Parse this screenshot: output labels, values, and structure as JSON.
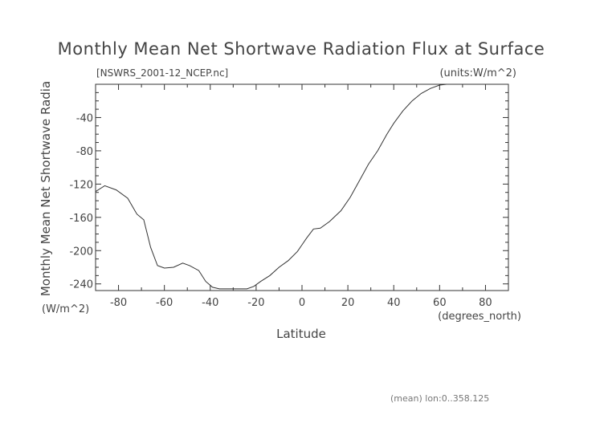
{
  "chart_data": {
    "type": "line",
    "title": "Monthly Mean Net Shortwave Radiation Flux at Surface",
    "subtitle": "[NSWRS_2001-12_NCEP.nc]",
    "units_label": "(units:W/m^2)",
    "xlabel": "Latitude",
    "xunits": "(degrees_north)",
    "ylabel": "Monthly Mean Net Shortwave Radia",
    "yunits": "(W/m^2)",
    "footnote": "(mean) lon:0..358.125",
    "xlim": [
      -90,
      90
    ],
    "ylim": [
      -248,
      0
    ],
    "x_ticks": [
      -80,
      -60,
      -40,
      -20,
      0,
      20,
      40,
      60,
      80
    ],
    "x_tick_labels": [
      "-80",
      "-60",
      "-40",
      "-20",
      "0",
      "20",
      "40",
      "60",
      "80"
    ],
    "y_ticks": [
      -40,
      -80,
      -120,
      -160,
      -200,
      -240
    ],
    "y_tick_labels": [
      "-40",
      "-80",
      "-120",
      "-160",
      "-200",
      "-240"
    ],
    "series": [
      {
        "name": "NSWRS",
        "x": [
          -90,
          -86,
          -81,
          -76,
          -72,
          -69,
          -66,
          -63,
          -60,
          -56,
          -52,
          -49,
          -45,
          -42,
          -39,
          -36,
          -33,
          -30,
          -27,
          -24,
          -21,
          -18,
          -14,
          -10,
          -6,
          -2,
          0,
          2,
          5,
          8,
          12,
          17,
          21,
          25,
          29,
          33,
          37,
          40,
          44,
          48,
          52,
          56,
          60,
          63,
          66
        ],
        "y": [
          -129,
          -122,
          -127,
          -137,
          -156,
          -163,
          -196,
          -218,
          -221,
          -220,
          -215,
          -218,
          -224,
          -237,
          -244,
          -246,
          -246,
          -246,
          -246,
          -246,
          -243,
          -237,
          -230,
          -220,
          -212,
          -201,
          -193,
          -185,
          -174,
          -173,
          -165,
          -152,
          -136,
          -116,
          -96,
          -80,
          -60,
          -47,
          -32,
          -20,
          -11,
          -5,
          -1,
          0,
          0
        ]
      }
    ]
  }
}
